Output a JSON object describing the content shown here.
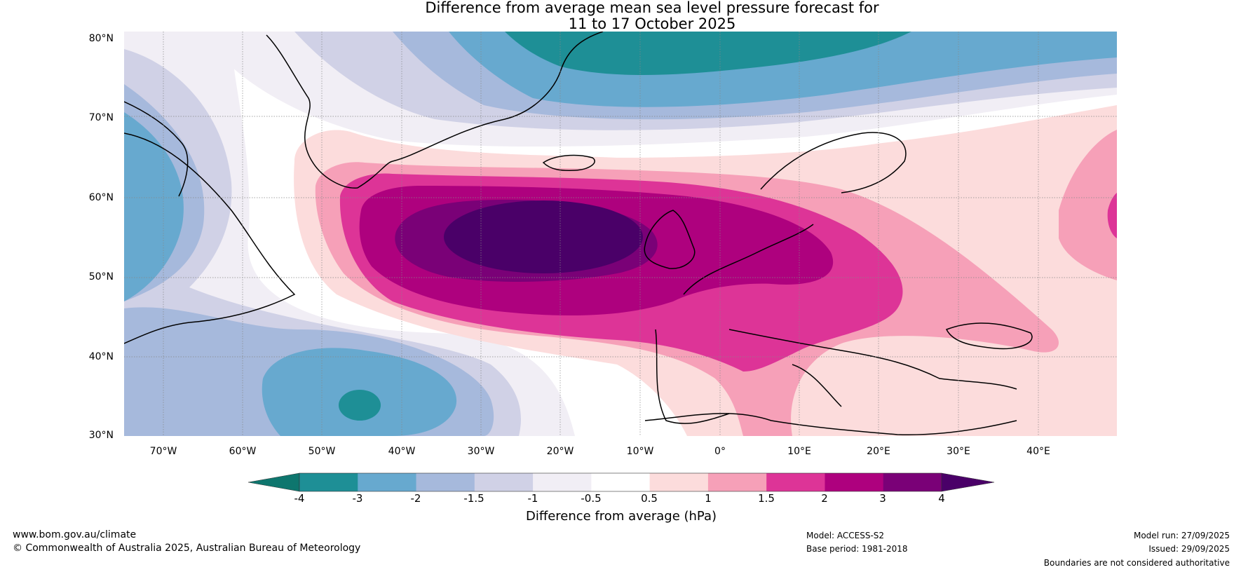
{
  "title": {
    "line1": "Difference from average mean sea level pressure forecast for",
    "line2": "11 to 17 October 2025"
  },
  "lat_labels": [
    "80°N",
    "70°N",
    "60°N",
    "50°N",
    "40°N",
    "30°N"
  ],
  "lon_labels": [
    "70°W",
    "60°W",
    "50°W",
    "40°W",
    "30°W",
    "20°W",
    "10°W",
    "0°",
    "10°E",
    "20°E",
    "30°E",
    "40°E"
  ],
  "colorbar": {
    "label": "Difference from average (hPa)",
    "ticks": [
      "-4",
      "-3",
      "-2",
      "-1.5",
      "-1",
      "-0.5",
      "0.5",
      "1",
      "1.5",
      "2",
      "3",
      "4"
    ],
    "colors": {
      "below_-4": "#0e766e",
      "-4_-3": "#1e8f96",
      "-3_-2": "#67a9cf",
      "-2_-1.5": "#a6b9dc",
      "-1.5_-1": "#d0d1e6",
      "-1_-0.5": "#f1eef5",
      "-0.5_0.5": "#ffffff",
      "0.5_1": "#fcdcdc",
      "1_1.5": "#f6a0b8",
      "1.5_2": "#dd3497",
      "2_3": "#ae017e",
      "3_4": "#7a0177",
      "above_4": "#4a0068"
    }
  },
  "footer": {
    "website": "www.bom.gov.au/climate",
    "copyright": "© Commonwealth of Australia 2025, Australian Bureau of Meteorology",
    "model": "Model: ACCESS-S2",
    "base_period": "Base period: 1981-2018",
    "model_run": "Model run: 27/09/2025",
    "issued": "Issued: 29/09/2025",
    "disclaimer": "Boundaries are not considered authoritative"
  }
}
